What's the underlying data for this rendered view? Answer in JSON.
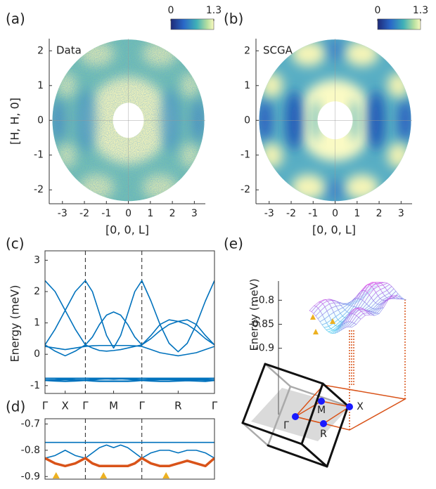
{
  "chart_data": [
    {
      "type": "heatmap",
      "panel_label": "(a)",
      "label": "Data",
      "xlabel": "[0, 0, L]",
      "ylabel": "[H, H, 0]",
      "xlim": [
        -3.6,
        3.5
      ],
      "ylim": [
        -2.4,
        2.35
      ],
      "xticks": [
        -3,
        -2,
        -1,
        0,
        1,
        2,
        3
      ],
      "yticks": [
        -2,
        -1,
        0,
        1,
        2
      ],
      "clim": [
        0,
        1.3
      ],
      "cticks": [
        0,
        1.3
      ]
    },
    {
      "type": "heatmap",
      "panel_label": "(b)",
      "label": "SCGA",
      "xlabel": "[0, 0, L]",
      "xlim": [
        -3.6,
        3.5
      ],
      "ylim": [
        -2.4,
        2.35
      ],
      "xticks": [
        -3,
        -2,
        -1,
        0,
        1,
        2,
        3
      ],
      "yticks": [
        -2,
        -1,
        0,
        1,
        2
      ],
      "clim": [
        0,
        1.3
      ],
      "cticks": [
        0,
        1.3
      ]
    },
    {
      "type": "line",
      "panel_label": "(c)",
      "ylabel": "Energy (meV)",
      "x": [
        0,
        0.5,
        1,
        1.5,
        2,
        2.35,
        2.7,
        3.05,
        3.4,
        3.75,
        4.1,
        4.45,
        4.8,
        5.25,
        5.7,
        6.15,
        6.6,
        7.05,
        7.5,
        7.95,
        8.4
      ],
      "xlim": [
        0,
        8.4
      ],
      "ylim": [
        -1.25,
        3.3
      ],
      "yticks": [
        -1,
        0,
        1,
        2,
        3
      ],
      "xticks": [
        {
          "value": 0,
          "label": "Γ"
        },
        {
          "value": 1,
          "label": "X"
        },
        {
          "value": 2,
          "label": "Γ"
        },
        {
          "value": 3.4,
          "label": "M"
        },
        {
          "value": 4.8,
          "label": "Γ"
        },
        {
          "value": 6.6,
          "label": "R"
        },
        {
          "value": 8.4,
          "label": "Γ"
        }
      ],
      "vlines": [
        2,
        4.8
      ],
      "series": [
        {
          "color": "#0072bd",
          "linewidth": 1.6,
          "values": [
            2.35,
            2.0,
            1.4,
            0.8,
            0.3,
            0.55,
            0.95,
            1.25,
            1.35,
            1.25,
            0.95,
            0.55,
            0.3,
            0.5,
            0.75,
            0.95,
            1.05,
            1.1,
            0.95,
            0.6,
            0.3
          ]
        },
        {
          "color": "#0072bd",
          "linewidth": 1.6,
          "values": [
            0.3,
            0.8,
            1.4,
            2.0,
            2.35,
            2.0,
            1.3,
            0.6,
            0.2,
            0.6,
            1.3,
            2.0,
            2.35,
            1.7,
            0.95,
            0.35,
            0.08,
            0.35,
            0.95,
            1.7,
            2.35
          ]
        },
        {
          "color": "#0072bd",
          "linewidth": 1.6,
          "values": [
            0.3,
            0.1,
            -0.05,
            0.1,
            0.3,
            0.2,
            0.12,
            0.1,
            0.12,
            0.15,
            0.2,
            0.25,
            0.3,
            0.6,
            0.95,
            1.1,
            1.05,
            0.95,
            0.75,
            0.5,
            0.3
          ]
        },
        {
          "color": "#0072bd",
          "linewidth": 1.6,
          "values": [
            0.25,
            0.2,
            0.15,
            0.2,
            0.25,
            0.27,
            0.28,
            0.28,
            0.28,
            0.28,
            0.28,
            0.27,
            0.25,
            0.15,
            0.05,
            0.0,
            -0.05,
            0.0,
            0.05,
            0.15,
            0.25
          ]
        },
        {
          "color": "#0072bd",
          "linewidth": 2.2,
          "values": [
            -0.77,
            -0.77,
            -0.77,
            -0.77,
            -0.77,
            -0.77,
            -0.77,
            -0.77,
            -0.77,
            -0.77,
            -0.77,
            -0.77,
            -0.77,
            -0.77,
            -0.77,
            -0.77,
            -0.77,
            -0.77,
            -0.77,
            -0.77,
            -0.77
          ]
        },
        {
          "color": "#0072bd",
          "linewidth": 2.2,
          "values": [
            -0.83,
            -0.82,
            -0.8,
            -0.82,
            -0.83,
            -0.81,
            -0.79,
            -0.78,
            -0.79,
            -0.78,
            -0.79,
            -0.81,
            -0.83,
            -0.81,
            -0.8,
            -0.8,
            -0.81,
            -0.8,
            -0.8,
            -0.81,
            -0.83
          ]
        },
        {
          "color": "#0072bd",
          "linewidth": 2.2,
          "values": [
            -0.83,
            -0.85,
            -0.86,
            -0.85,
            -0.83,
            -0.85,
            -0.86,
            -0.86,
            -0.86,
            -0.86,
            -0.86,
            -0.85,
            -0.83,
            -0.85,
            -0.86,
            -0.86,
            -0.85,
            -0.84,
            -0.85,
            -0.86,
            -0.83
          ]
        }
      ]
    },
    {
      "type": "line",
      "panel_label": "(d)",
      "x": [
        0,
        0.5,
        1,
        1.5,
        2,
        2.35,
        2.7,
        3.05,
        3.4,
        3.75,
        4.1,
        4.45,
        4.8,
        5.25,
        5.7,
        6.15,
        6.6,
        7.05,
        7.5,
        7.95,
        8.4
      ],
      "xlim": [
        0,
        8.4
      ],
      "ylim": [
        -0.91,
        -0.68
      ],
      "yticks": [
        -0.7,
        -0.8,
        -0.9
      ],
      "vlines": [
        2,
        4.8
      ],
      "markers": {
        "x": [
          0.55,
          2.9,
          6.0
        ],
        "color": "#edb120"
      },
      "series": [
        {
          "color": "#0072bd",
          "linewidth": 1.6,
          "values": [
            -0.77,
            -0.77,
            -0.77,
            -0.77,
            -0.77,
            -0.77,
            -0.77,
            -0.77,
            -0.77,
            -0.77,
            -0.77,
            -0.77,
            -0.77,
            -0.77,
            -0.77,
            -0.77,
            -0.77,
            -0.77,
            -0.77,
            -0.77,
            -0.77
          ]
        },
        {
          "color": "#0072bd",
          "linewidth": 1.6,
          "values": [
            -0.83,
            -0.82,
            -0.8,
            -0.82,
            -0.83,
            -0.81,
            -0.79,
            -0.78,
            -0.79,
            -0.78,
            -0.79,
            -0.81,
            -0.83,
            -0.81,
            -0.8,
            -0.8,
            -0.81,
            -0.8,
            -0.8,
            -0.81,
            -0.83
          ]
        },
        {
          "color": "#d95319",
          "linewidth": 3.5,
          "values": [
            -0.83,
            -0.85,
            -0.86,
            -0.85,
            -0.83,
            -0.85,
            -0.86,
            -0.86,
            -0.86,
            -0.86,
            -0.86,
            -0.85,
            -0.83,
            -0.85,
            -0.86,
            -0.86,
            -0.85,
            -0.84,
            -0.85,
            -0.86,
            -0.83
          ]
        }
      ]
    },
    {
      "type": "surface",
      "panel_label": "(e)",
      "zlabel": "Energy (meV)",
      "zlim": [
        -0.94,
        -0.76
      ],
      "zticks": [
        -0.8,
        -0.85,
        -0.9
      ],
      "points": [
        "Γ",
        "M",
        "X",
        "R"
      ]
    }
  ]
}
